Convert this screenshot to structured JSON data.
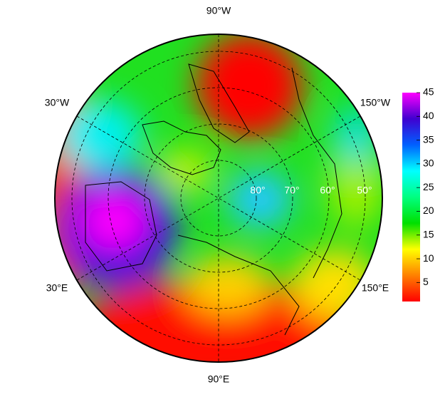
{
  "map": {
    "type": "polar-map",
    "lon_labels": [
      "90°W",
      "30°W",
      "150°W",
      "30°E",
      "150°E",
      "90°E"
    ],
    "lat_labels": [
      "80°",
      "70°",
      "60°",
      "50°"
    ]
  },
  "colorbar": {
    "lim": [
      1,
      45
    ],
    "ticks": [
      5,
      10,
      15,
      20,
      25,
      30,
      35,
      40,
      45
    ],
    "colors": [
      "#ff0000",
      "#ff8000",
      "#ffff00",
      "#00e000",
      "#00ff80",
      "#00ffff",
      "#0060ff",
      "#4000d0",
      "#ff00ff"
    ]
  }
}
